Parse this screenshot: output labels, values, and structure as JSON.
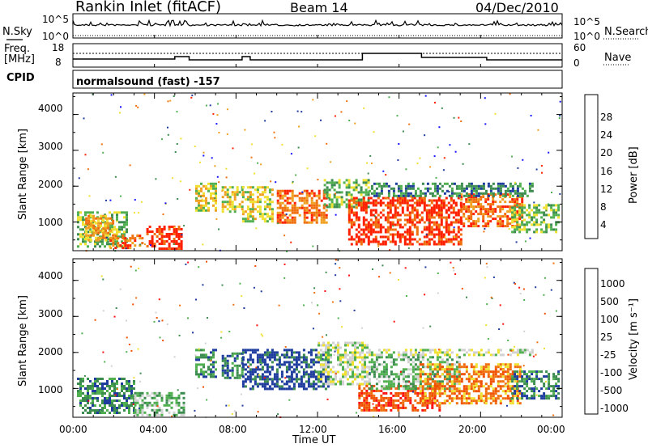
{
  "header": {
    "station": "Rankin Inlet (fitACF)",
    "beam": "Beam 14",
    "date": "04/Dec/2010"
  },
  "top_panels": {
    "nsky_label": "N.Sky",
    "nsky_ticks": [
      "10^5",
      "10^0"
    ],
    "nsearch_label": "N.Search",
    "nsearch_ticks": [
      "10^5",
      "10^0"
    ],
    "freq_label": "Freq.",
    "freq_unit": "[MHz]",
    "freq_ticks": [
      "18",
      "8"
    ],
    "nave_label": "Nave",
    "nave_ticks": [
      "60",
      "0"
    ],
    "cpid_label": "CPID",
    "cpid_text": "normalsound (fast) -157"
  },
  "x_axis": {
    "label": "Time UT",
    "ticks": [
      "00:00",
      "04:00",
      "08:00",
      "12:00",
      "16:00",
      "20:00",
      "00:00"
    ]
  },
  "colors": {
    "power": [
      "#1414ff",
      "#1e3c9e",
      "#3c8c50",
      "#50b050",
      "#f0e030",
      "#f0a020",
      "#f07010",
      "#ff2000"
    ],
    "velocity": [
      "#1e3c9e",
      "#3c8c50",
      "#50b050",
      "#d2d2d2",
      "#f0e030",
      "#f07010",
      "#f05000",
      "#ff1010"
    ]
  },
  "chart_data": [
    {
      "type": "heatmap",
      "name": "power",
      "ylabel": "Slant Range [km]",
      "yticks": [
        "4000",
        "3000",
        "2000",
        "1000"
      ],
      "ylim": [
        200,
        4600
      ],
      "xlim": [
        0,
        24
      ],
      "colorbar_label": "Power [dB]",
      "colorbar_ticks": [
        "28",
        "24",
        "20",
        "16",
        "12",
        "8",
        "4"
      ],
      "regions": [
        {
          "x": [
            0.2,
            2.6
          ],
          "y": [
            300,
            1300
          ],
          "level": 3
        },
        {
          "x": [
            0.6,
            2.0
          ],
          "y": [
            500,
            1200
          ],
          "level": 5
        },
        {
          "x": [
            1.8,
            3.4
          ],
          "y": [
            250,
            650
          ],
          "level": 6
        },
        {
          "x": [
            3.6,
            5.3
          ],
          "y": [
            250,
            900
          ],
          "level": 7
        },
        {
          "x": [
            6.0,
            7.0
          ],
          "y": [
            1300,
            2100
          ],
          "level": 4
        },
        {
          "x": [
            7.3,
            8.3
          ],
          "y": [
            1300,
            2000
          ],
          "level": 4
        },
        {
          "x": [
            8.3,
            9.8
          ],
          "y": [
            1000,
            2000
          ],
          "level": 4
        },
        {
          "x": [
            10.0,
            12.5
          ],
          "y": [
            1000,
            1900
          ],
          "level": 6
        },
        {
          "x": [
            12.3,
            14.5
          ],
          "y": [
            1400,
            2200
          ],
          "level": 3
        },
        {
          "x": [
            13.5,
            19.0
          ],
          "y": [
            400,
            1700
          ],
          "level": 7
        },
        {
          "x": [
            19.0,
            22.0
          ],
          "y": [
            900,
            1800
          ],
          "level": 6
        },
        {
          "x": [
            21.5,
            23.8
          ],
          "y": [
            700,
            1500
          ],
          "level": 3
        },
        {
          "x": [
            14.5,
            22.5
          ],
          "y": [
            1700,
            2100
          ],
          "level": 2
        }
      ]
    },
    {
      "type": "heatmap",
      "name": "velocity",
      "ylabel": "Slant Range [km]",
      "yticks": [
        "4000",
        "3000",
        "2000",
        "1000"
      ],
      "ylim": [
        200,
        4600
      ],
      "xlim": [
        0,
        24
      ],
      "colorbar_label": "Velocity [m s⁻¹]",
      "colorbar_ticks": [
        "1000",
        "500",
        "100",
        "25",
        "-25",
        "-100",
        "-500",
        "-1000"
      ],
      "regions": [
        {
          "x": [
            0.2,
            3.0
          ],
          "y": [
            300,
            1300
          ],
          "level": 1
        },
        {
          "x": [
            3.0,
            5.5
          ],
          "y": [
            250,
            900
          ],
          "level": 2
        },
        {
          "x": [
            6.0,
            7.0
          ],
          "y": [
            1300,
            2100
          ],
          "level": 1
        },
        {
          "x": [
            7.3,
            8.3
          ],
          "y": [
            1300,
            2000
          ],
          "level": 1
        },
        {
          "x": [
            8.3,
            12.5
          ],
          "y": [
            1000,
            2100
          ],
          "level": 0
        },
        {
          "x": [
            12.0,
            14.5
          ],
          "y": [
            1100,
            2300
          ],
          "level": 3
        },
        {
          "x": [
            14.0,
            18.0
          ],
          "y": [
            400,
            1100
          ],
          "level": 6
        },
        {
          "x": [
            14.5,
            19.0
          ],
          "y": [
            1000,
            1900
          ],
          "level": 2
        },
        {
          "x": [
            17.0,
            22.0
          ],
          "y": [
            600,
            1700
          ],
          "level": 5
        },
        {
          "x": [
            21.5,
            23.8
          ],
          "y": [
            700,
            1500
          ],
          "level": 1
        },
        {
          "x": [
            14.5,
            22.5
          ],
          "y": [
            1900,
            2100
          ],
          "level": 3
        }
      ]
    }
  ]
}
